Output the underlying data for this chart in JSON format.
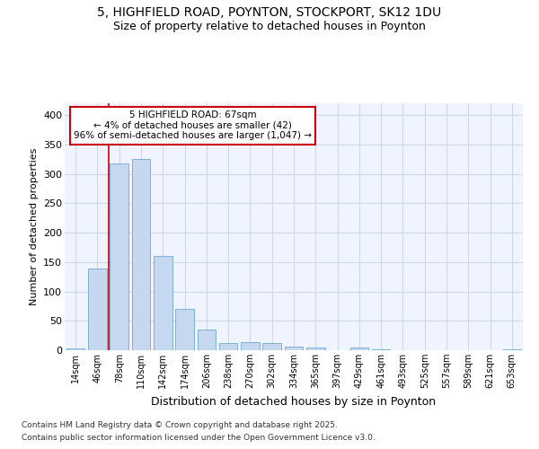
{
  "title1": "5, HIGHFIELD ROAD, POYNTON, STOCKPORT, SK12 1DU",
  "title2": "Size of property relative to detached houses in Poynton",
  "xlabel": "Distribution of detached houses by size in Poynton",
  "ylabel": "Number of detached properties",
  "bar_color": "#c5d8f0",
  "bar_edge_color": "#6fa8d4",
  "background_color": "#ffffff",
  "plot_bg_color": "#f0f4ff",
  "grid_color": "#d0d8e8",
  "categories": [
    "14sqm",
    "46sqm",
    "78sqm",
    "110sqm",
    "142sqm",
    "174sqm",
    "206sqm",
    "238sqm",
    "270sqm",
    "302sqm",
    "334sqm",
    "365sqm",
    "397sqm",
    "429sqm",
    "461sqm",
    "493sqm",
    "525sqm",
    "557sqm",
    "589sqm",
    "621sqm",
    "653sqm"
  ],
  "values": [
    3,
    139,
    317,
    325,
    160,
    70,
    35,
    12,
    14,
    12,
    6,
    5,
    0,
    4,
    1,
    0,
    0,
    0,
    0,
    0,
    1
  ],
  "ylim": [
    0,
    420
  ],
  "yticks": [
    0,
    50,
    100,
    150,
    200,
    250,
    300,
    350,
    400
  ],
  "red_line_x": 1.5,
  "annotation_text": "5 HIGHFIELD ROAD: 67sqm\n← 4% of detached houses are smaller (42)\n96% of semi-detached houses are larger (1,047) →",
  "annotation_box_color": "#ffffff",
  "annotation_box_edge": "#cc0000",
  "footnote1": "Contains HM Land Registry data © Crown copyright and database right 2025.",
  "footnote2": "Contains public sector information licensed under the Open Government Licence v3.0."
}
